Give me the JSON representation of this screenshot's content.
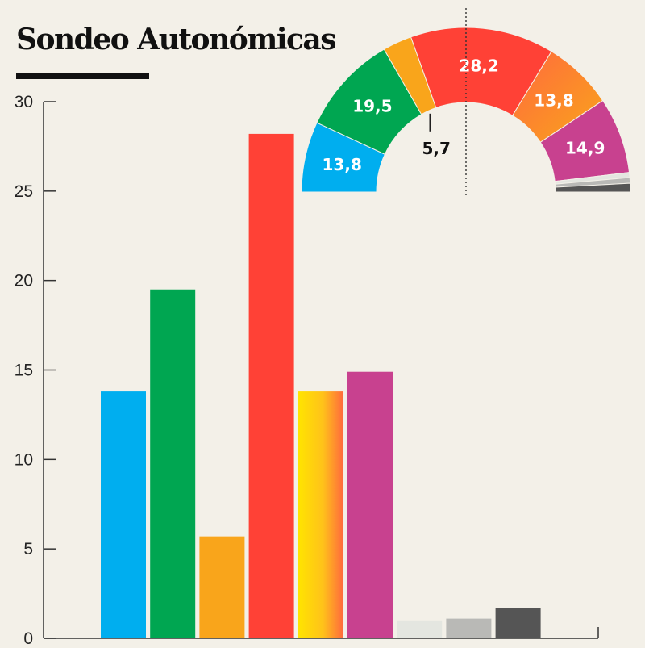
{
  "title": "Sondeo Autonómicas",
  "chart_data": [
    {
      "type": "bar",
      "title": "Sondeo Autonómicas",
      "xlabel": "",
      "ylabel": "",
      "ylim": [
        0,
        30
      ],
      "yticks": [
        "0",
        "5",
        "10",
        "15",
        "20",
        "25",
        "30"
      ],
      "grid": false,
      "values": [
        13.8,
        19.5,
        5.7,
        28.2,
        13.8,
        14.9,
        1.0,
        1.1,
        1.7
      ],
      "colors": [
        "#00aeef",
        "#00a651",
        "#f9a51b",
        "#ff4136",
        "gradient:#ffe400-#ff6a3d",
        "#c8418f",
        "#e4e6e0",
        "#b9b9b6",
        "#555555"
      ]
    },
    {
      "type": "pie",
      "shape": "semicircle",
      "majority_marker": true,
      "values": [
        13.8,
        19.5,
        5.7,
        28.2,
        13.8,
        14.9,
        1.0,
        1.1,
        1.7
      ],
      "labels": [
        "13,8",
        "19,5",
        "5,7",
        "28,2",
        "13,8",
        "14,9",
        "",
        "",
        ""
      ],
      "colors": [
        "#00aeef",
        "#00a651",
        "#f9a51b",
        "#ff4136",
        "gradient:#ff6a3d-#f9a51b",
        "#c8418f",
        "#e4e6e0",
        "#b9b9b6",
        "#555555"
      ]
    }
  ]
}
